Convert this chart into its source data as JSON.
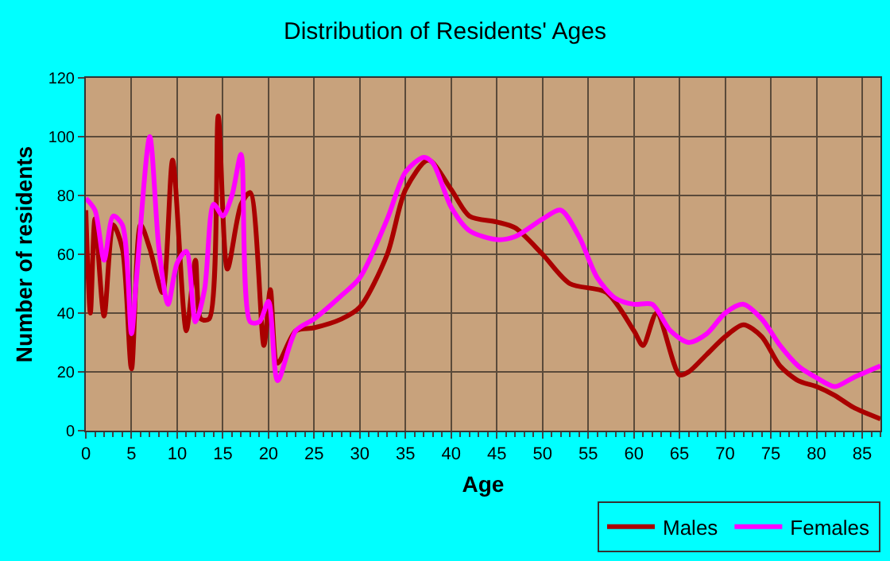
{
  "chart_data": {
    "type": "line",
    "title": "Distribution of Residents' Ages",
    "xlabel": "Age",
    "ylabel": "Number of residents",
    "xlim": [
      0,
      87
    ],
    "xticks": [
      0,
      5,
      10,
      15,
      20,
      25,
      30,
      35,
      40,
      45,
      50,
      55,
      60,
      65,
      70,
      75,
      80,
      85
    ],
    "ylim": [
      0,
      120
    ],
    "yticks": [
      0,
      20,
      40,
      60,
      80,
      100,
      120
    ],
    "grid": true,
    "legend": "bottom right",
    "marker": "none",
    "line_style": "solid",
    "series": [
      {
        "name": "Males",
        "color": "#aa0000",
        "x": [
          0,
          0.5,
          1,
          2,
          3,
          4,
          5,
          6,
          7,
          8.4,
          9.5,
          11,
          12,
          12.6,
          13.5,
          14.5,
          15.5,
          17,
          18,
          19.5,
          20.2,
          21,
          23,
          25,
          28,
          30,
          33,
          35,
          37.5,
          40,
          42,
          45,
          47,
          50,
          53,
          57,
          60,
          61,
          62.5,
          65,
          66,
          68,
          70,
          72,
          74,
          76,
          78,
          80,
          82,
          84,
          87
        ],
        "values": [
          75,
          40,
          72,
          39,
          70,
          62,
          21,
          70,
          62,
          47,
          92,
          34,
          58,
          38,
          38,
          107,
          55,
          77,
          81,
          29,
          48,
          23,
          34,
          35,
          38,
          42,
          60,
          82,
          92,
          82,
          73,
          71,
          69,
          60,
          50,
          47,
          34,
          29,
          40,
          19,
          20,
          26,
          32,
          36,
          32,
          22,
          17,
          15,
          12,
          8,
          4
        ]
      },
      {
        "name": "Females",
        "color": "#ff00ff",
        "x": [
          0,
          1,
          2,
          3,
          4,
          5,
          5.5,
          7,
          8,
          9,
          10,
          11,
          12,
          13,
          14,
          15,
          16,
          17,
          18,
          19,
          20,
          21,
          23,
          25,
          28,
          30,
          33,
          35,
          37,
          38,
          40,
          42,
          45,
          47,
          50,
          52,
          54,
          56,
          58,
          60,
          62,
          64,
          66,
          68,
          70,
          72,
          74,
          76,
          78,
          80,
          82,
          84,
          87
        ],
        "values": [
          79,
          75,
          58,
          73,
          70,
          33,
          50,
          100,
          62,
          43,
          57,
          61,
          37,
          48,
          77,
          73,
          80,
          94,
          37,
          37,
          44,
          17,
          34,
          38,
          46,
          52,
          72,
          88,
          93,
          91,
          76,
          68,
          65,
          66,
          72,
          75,
          66,
          52,
          45,
          43,
          43,
          34,
          30,
          33,
          40,
          43,
          38,
          29,
          22,
          18,
          15,
          18,
          22
        ]
      }
    ]
  }
}
